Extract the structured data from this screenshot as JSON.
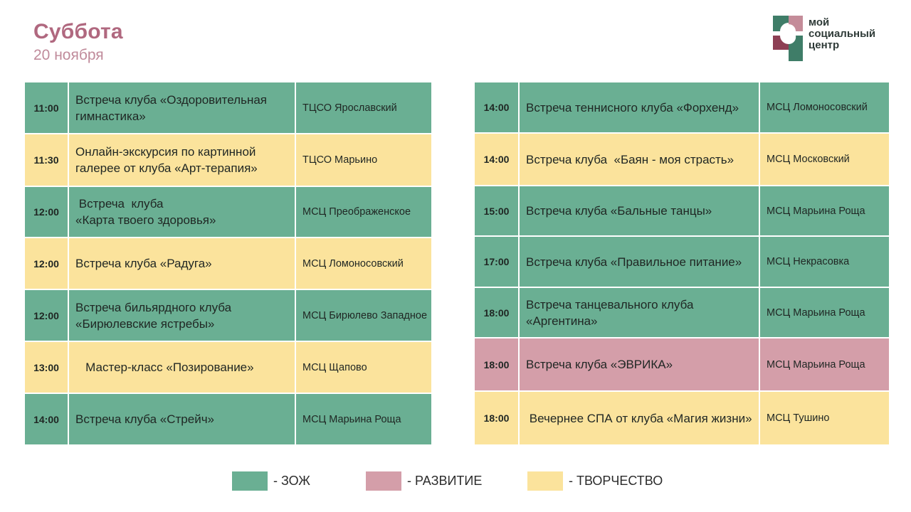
{
  "header": {
    "day": "Суббота",
    "date": "20 ноября"
  },
  "logo": {
    "lines": [
      "мой",
      "социальный",
      "центр"
    ]
  },
  "colors": {
    "zozh": "#6aaf93",
    "tvor": "#fbe39c",
    "razv": "#d49ea9",
    "title": "#b0687f"
  },
  "schedule": {
    "left": [
      {
        "time": "11:00",
        "event": "Встреча клуба «Оздоровительная гимнастика»",
        "place": "ТЦСО Ярославский",
        "category": "zozh"
      },
      {
        "time": "11:30",
        "event": "Онлайн-экскурсия по картинной галерее от клуба «Арт-терапия»",
        "place": "ТЦСО Марьино",
        "category": "tvor"
      },
      {
        "time": "12:00",
        "event": " Встреча  клуба\n«Карта твоего здоровья»",
        "place": "МСЦ Преображенское",
        "category": "zozh"
      },
      {
        "time": "12:00",
        "event": "Встреча клуба «Радуга»",
        "place": "МСЦ Ломоносовский",
        "category": "tvor"
      },
      {
        "time": "12:00",
        "event": "Встреча бильярдного клуба «Бирюлевские ястребы»",
        "place": "МСЦ Бирюлево Западное",
        "category": "zozh"
      },
      {
        "time": "13:00",
        "event": "   Мастер-класс «Позирование»",
        "place": "МСЦ Щапово",
        "category": "tvor"
      },
      {
        "time": "14:00",
        "event": "Встреча клуба «Стрейч»",
        "place": "МСЦ Марьина Роща",
        "category": "zozh"
      }
    ],
    "right": [
      {
        "time": "14:00",
        "event": "Встреча теннисного клуба «Форхенд»",
        "place": "МСЦ Ломоносовский",
        "category": "zozh"
      },
      {
        "time": "14:00",
        "event": "Встреча клуба  «Баян - моя страсть»",
        "place": "МСЦ Московский",
        "category": "tvor"
      },
      {
        "time": "15:00",
        "event": "Встреча клуба «Бальные танцы»",
        "place": "МСЦ Марьина Роща",
        "category": "zozh"
      },
      {
        "time": "17:00",
        "event": "Встреча клуба «Правильное питание»",
        "place": "МСЦ Некрасовка",
        "category": "zozh"
      },
      {
        "time": "18:00",
        "event": "Встреча танцевального клуба «Аргентина»",
        "place": "МСЦ Марьина Роща",
        "category": "zozh"
      },
      {
        "time": "18:00",
        "event": "Встреча клуба «ЭВРИКА»",
        "place": "МСЦ Марьина Роща",
        "category": "razv"
      },
      {
        "time": "18:00",
        "event": " Вечернее СПА от клуба «Магия жизни»",
        "place": "МСЦ Тушино",
        "category": "tvor"
      }
    ]
  },
  "legend": [
    {
      "label": "- ЗОЖ",
      "category": "zozh"
    },
    {
      "label": "- РАЗВИТИЕ",
      "category": "razv"
    },
    {
      "label": "- ТВОРЧЕСТВО",
      "category": "tvor"
    }
  ]
}
